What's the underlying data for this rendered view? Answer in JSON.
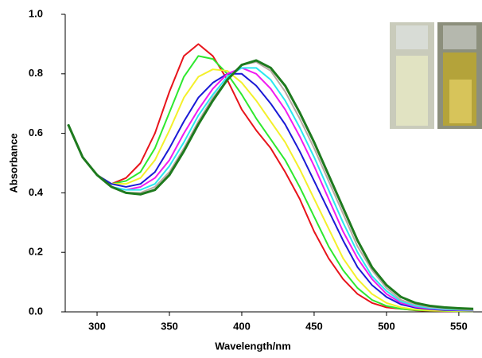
{
  "chart_data": {
    "type": "line",
    "x_label": "Wavelength/nm",
    "y_label": "Absorbance",
    "x": [
      280,
      290,
      300,
      310,
      320,
      330,
      340,
      350,
      360,
      370,
      380,
      390,
      400,
      410,
      420,
      430,
      440,
      450,
      460,
      470,
      480,
      490,
      500,
      510,
      520,
      530,
      540,
      550,
      560
    ],
    "xlim": [
      278,
      566
    ],
    "xticks": [
      300,
      350,
      400,
      450,
      500,
      550
    ],
    "ylim": [
      0,
      1
    ],
    "yticks": [
      {
        "value": 0,
        "label": "0.0"
      },
      0.2,
      0.4,
      0.6,
      0.8,
      {
        "value": 1,
        "label": "1.0"
      }
    ],
    "series": [
      {
        "color": "#e8141b",
        "values": [
          0.63,
          0.52,
          0.46,
          0.43,
          0.45,
          0.5,
          0.6,
          0.74,
          0.86,
          0.9,
          0.86,
          0.78,
          0.68,
          0.61,
          0.55,
          0.47,
          0.38,
          0.27,
          0.18,
          0.11,
          0.06,
          0.03,
          0.015,
          0.01,
          0.005,
          0.003,
          0.002,
          0.002,
          0.002
        ]
      },
      {
        "color": "#2ee82e",
        "values": [
          0.63,
          0.52,
          0.46,
          0.43,
          0.44,
          0.47,
          0.55,
          0.67,
          0.79,
          0.86,
          0.85,
          0.8,
          0.73,
          0.65,
          0.58,
          0.51,
          0.42,
          0.32,
          0.22,
          0.14,
          0.08,
          0.04,
          0.02,
          0.01,
          0.006,
          0.004,
          0.003,
          0.002,
          0.002
        ]
      },
      {
        "color": "#f4f02a",
        "values": [
          0.63,
          0.52,
          0.46,
          0.43,
          0.43,
          0.45,
          0.51,
          0.61,
          0.72,
          0.79,
          0.815,
          0.81,
          0.77,
          0.71,
          0.64,
          0.57,
          0.48,
          0.38,
          0.28,
          0.18,
          0.11,
          0.06,
          0.03,
          0.015,
          0.008,
          0.005,
          0.004,
          0.003,
          0.003
        ]
      },
      {
        "color": "#1a1ad6",
        "values": [
          0.63,
          0.52,
          0.46,
          0.43,
          0.42,
          0.43,
          0.47,
          0.55,
          0.64,
          0.72,
          0.77,
          0.8,
          0.8,
          0.76,
          0.7,
          0.63,
          0.54,
          0.44,
          0.34,
          0.24,
          0.15,
          0.09,
          0.05,
          0.025,
          0.014,
          0.009,
          0.006,
          0.005,
          0.004
        ]
      },
      {
        "color": "#f01cf0",
        "values": [
          0.63,
          0.52,
          0.46,
          0.42,
          0.41,
          0.42,
          0.45,
          0.51,
          0.6,
          0.68,
          0.75,
          0.8,
          0.82,
          0.8,
          0.75,
          0.68,
          0.59,
          0.49,
          0.38,
          0.27,
          0.18,
          0.11,
          0.06,
          0.03,
          0.017,
          0.011,
          0.008,
          0.006,
          0.005
        ]
      },
      {
        "color": "#2ae8f0",
        "values": [
          0.63,
          0.52,
          0.46,
          0.42,
          0.41,
          0.41,
          0.43,
          0.49,
          0.57,
          0.66,
          0.73,
          0.79,
          0.82,
          0.82,
          0.78,
          0.71,
          0.62,
          0.52,
          0.41,
          0.3,
          0.2,
          0.12,
          0.07,
          0.035,
          0.02,
          0.013,
          0.009,
          0.007,
          0.006
        ]
      },
      {
        "color": "#b9a9a4",
        "values": [
          0.63,
          0.52,
          0.46,
          0.42,
          0.4,
          0.4,
          0.42,
          0.47,
          0.55,
          0.64,
          0.72,
          0.78,
          0.83,
          0.84,
          0.81,
          0.74,
          0.65,
          0.55,
          0.44,
          0.33,
          0.22,
          0.14,
          0.08,
          0.04,
          0.025,
          0.016,
          0.012,
          0.009,
          0.007
        ]
      },
      {
        "color": "#1e7a1e",
        "values": [
          0.63,
          0.52,
          0.46,
          0.42,
          0.4,
          0.395,
          0.41,
          0.46,
          0.54,
          0.63,
          0.71,
          0.78,
          0.83,
          0.845,
          0.82,
          0.76,
          0.67,
          0.57,
          0.46,
          0.35,
          0.24,
          0.15,
          0.09,
          0.05,
          0.03,
          0.02,
          0.015,
          0.012,
          0.01
        ]
      }
    ]
  }
}
